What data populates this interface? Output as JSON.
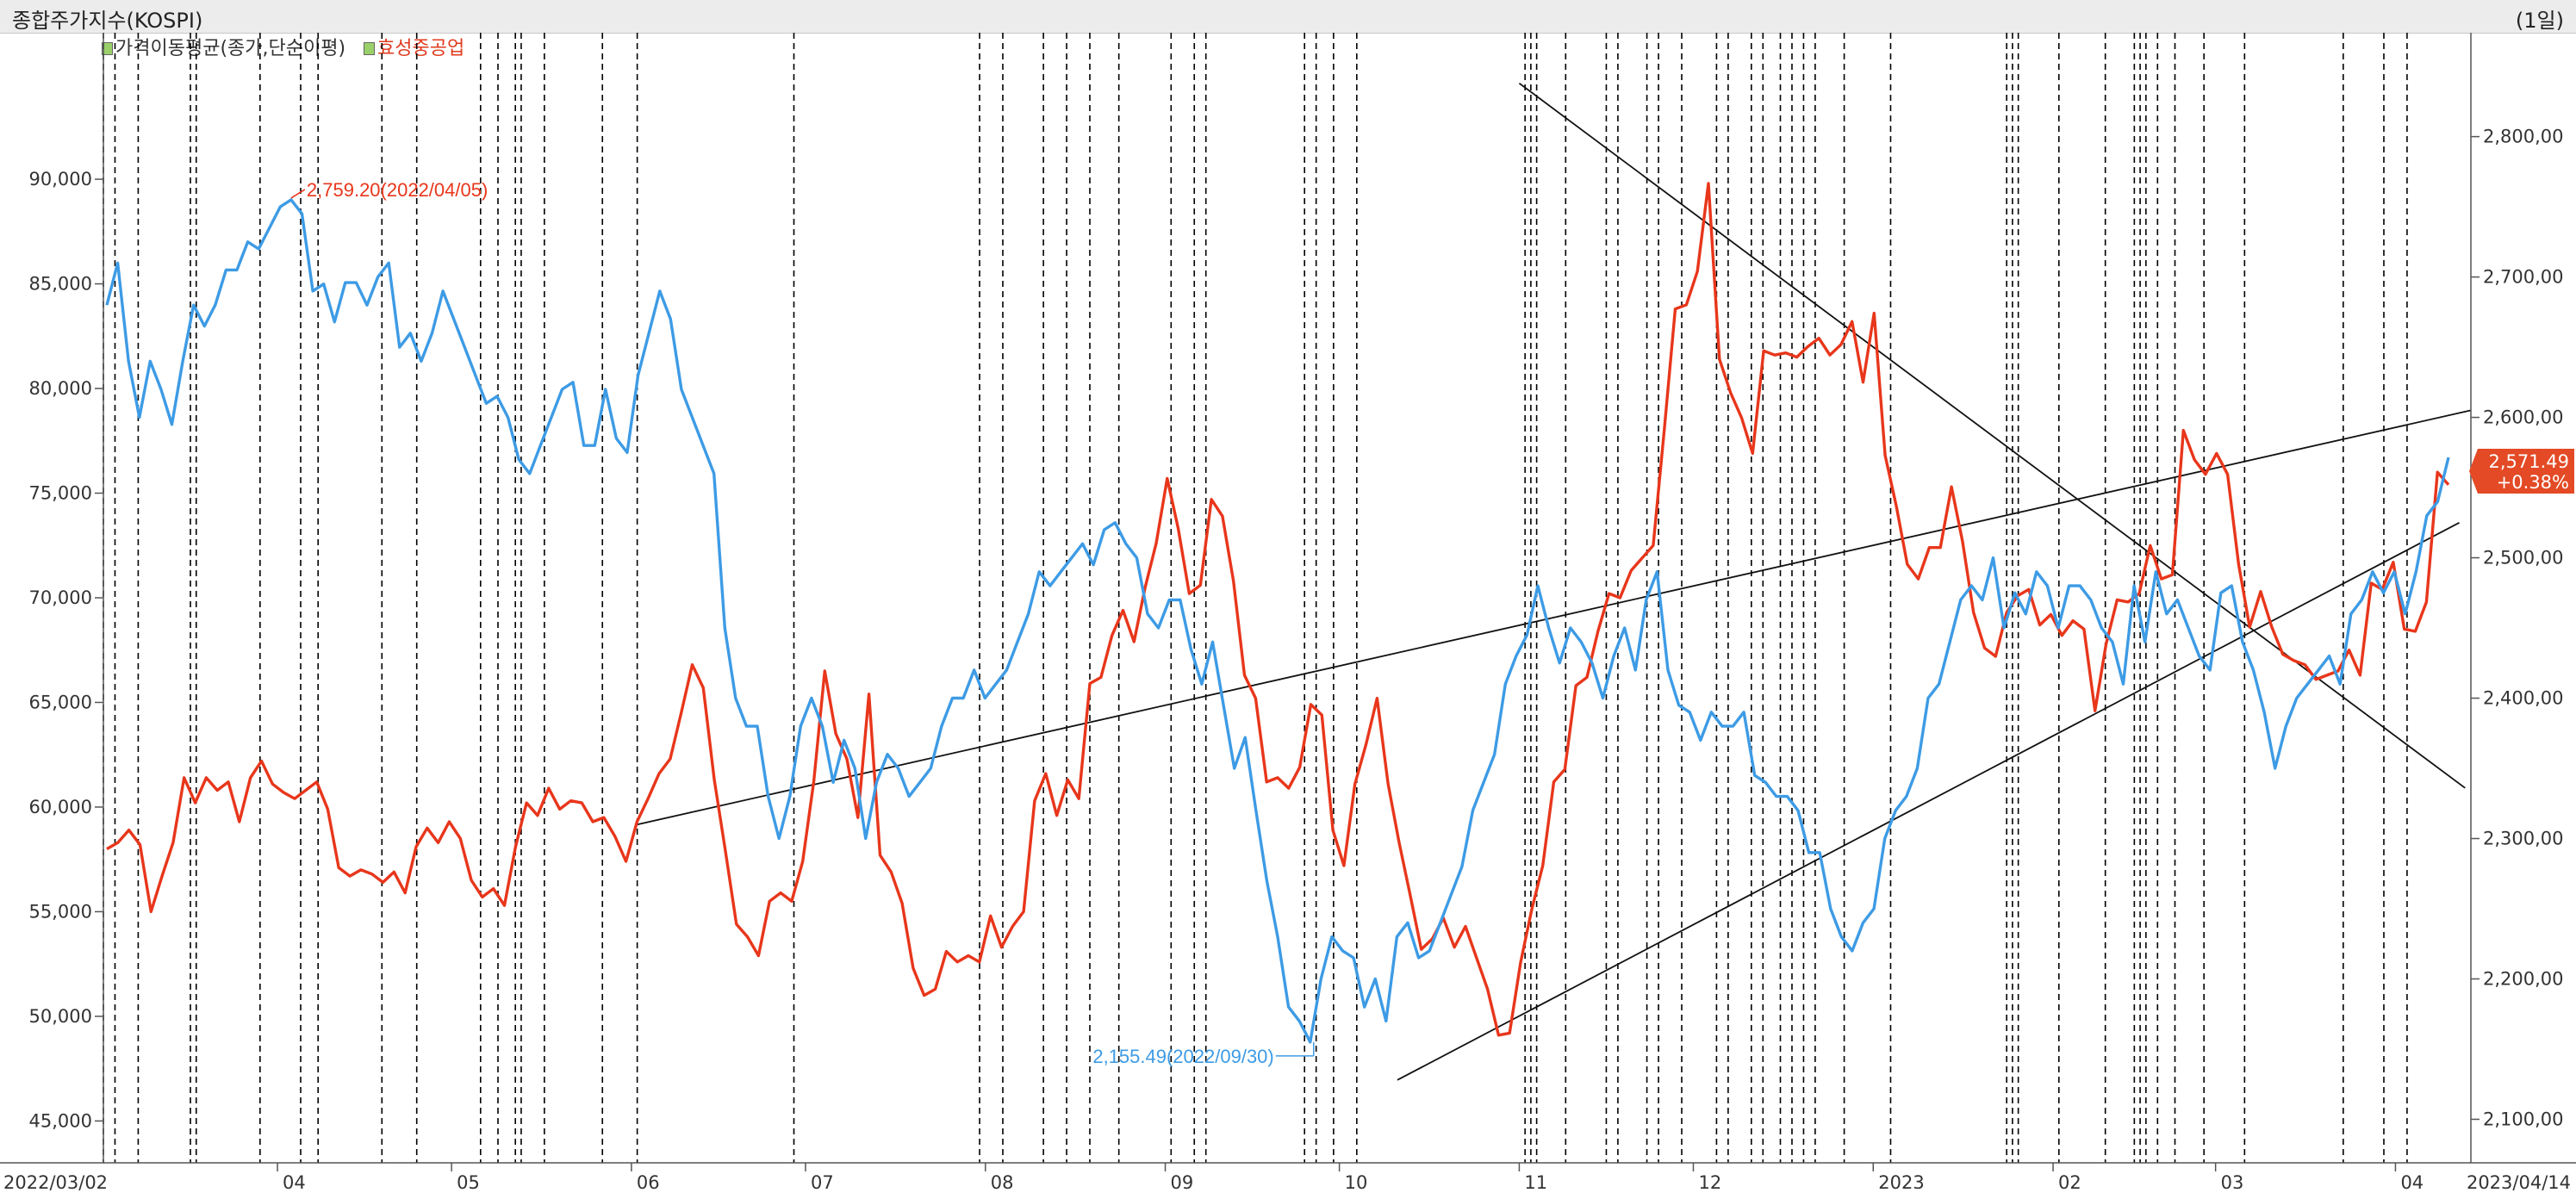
{
  "header": {
    "title": "종합주가지수(KOSPI)",
    "period": "(1일)"
  },
  "legend": {
    "items": [
      {
        "label": "가격이동평균(종가,단순이평)",
        "color": "#333333"
      },
      {
        "label": "효성중공업",
        "color": "#e03b1e"
      }
    ]
  },
  "colors": {
    "hyosung": "#e8361b",
    "kospi": "#3d9be5",
    "trendline": "#111111",
    "vline": "#000000",
    "vline_light": "#b5b5b5",
    "lastbox": "#e34a25"
  },
  "chart_data": {
    "type": "line",
    "x": {
      "start": "2022-03-02",
      "end": "2023-04-14",
      "labels": [
        "2022/03/02",
        "04",
        "05",
        "06",
        "07",
        "08",
        "09",
        "10",
        "11",
        "12",
        "2023",
        "02",
        "03",
        "04",
        "2023/04/14"
      ]
    },
    "y_left": {
      "label": "효성중공업",
      "ylim": [
        43000,
        97000
      ],
      "ticks": [
        "45,000",
        "50,000",
        "55,000",
        "60,000",
        "65,000",
        "70,000",
        "75,000",
        "80,000",
        "85,000",
        "90,000"
      ]
    },
    "y_right": {
      "label": "KOSPI",
      "ylim": [
        2069,
        2874
      ],
      "ticks": [
        "2,100,00",
        "2,200,00",
        "2,300,00",
        "2,400,00",
        "2,500,00",
        "2,600,00",
        "2,700,00",
        "2,800,00"
      ]
    },
    "series": [
      {
        "name": "효성중공업",
        "axis": "left",
        "values": [
          58000,
          58300,
          58900,
          58200,
          55000,
          56700,
          58300,
          61400,
          60200,
          61400,
          60800,
          61200,
          59300,
          61400,
          62200,
          61100,
          60700,
          60400,
          60800,
          61200,
          59900,
          57100,
          56700,
          57000,
          56800,
          56400,
          56900,
          55900,
          58100,
          59000,
          58300,
          59300,
          58500,
          56500,
          55700,
          56100,
          55300,
          58100,
          60200,
          59600,
          60900,
          59900,
          60300,
          60200,
          59300,
          59500,
          58600,
          57400,
          59300,
          60400,
          61600,
          62300,
          64500,
          66800,
          65700,
          61300,
          57900,
          54400,
          53800,
          52900,
          55500,
          55900,
          55500,
          57400,
          61200,
          66500,
          63500,
          62300,
          59500,
          65400,
          57700,
          56900,
          55400,
          52300,
          51000,
          51300,
          53100,
          52600,
          52900,
          52600,
          54800,
          53300,
          54300,
          55000,
          60300,
          61600,
          59600,
          61300,
          60400,
          65900,
          66200,
          68200,
          69400,
          67900,
          70500,
          72600,
          75700,
          73300,
          70200,
          70600,
          74700,
          73900,
          70800,
          66300,
          65200,
          61200,
          61400,
          60900,
          61900,
          64900,
          64400,
          58900,
          57200,
          61100,
          63000,
          65200,
          61100,
          58300,
          55800,
          53200,
          53700,
          54700,
          53300,
          54300,
          52800,
          51300,
          49100,
          49200,
          52600,
          55100,
          57200,
          61200,
          61800,
          65800,
          66200,
          68400,
          70200,
          70000,
          71300,
          71900,
          72500,
          78000,
          83800,
          84000,
          85600,
          89800,
          81400,
          79800,
          78600,
          76900,
          81800,
          81600,
          81700,
          81500,
          82000,
          82400,
          81600,
          82100,
          83200,
          80300,
          83600,
          76800,
          74400,
          71600,
          70900,
          72400,
          72400,
          75300,
          72700,
          69300,
          67600,
          67200,
          69300,
          70100,
          70400,
          68700,
          69200,
          68200,
          68900,
          68500,
          64600,
          67800,
          69900,
          69800,
          70200,
          72500,
          70900,
          71100,
          78000,
          76600,
          75900,
          76900,
          75900,
          71600,
          68600,
          70300,
          68600,
          67300,
          67000,
          66800,
          66100,
          66300,
          66500,
          67500,
          66300,
          70700,
          70400,
          71700,
          68500,
          68400,
          69800,
          76000,
          75400
        ]
      },
      {
        "name": "KOSPI",
        "axis": "right",
        "values": [
          2680,
          2710,
          2640,
          2600,
          2640,
          2620,
          2595,
          2640,
          2680,
          2665,
          2680,
          2705,
          2705,
          2725,
          2720,
          2735,
          2750,
          2755,
          2745,
          2690,
          2695,
          2668,
          2696,
          2696,
          2680,
          2700,
          2710,
          2650,
          2660,
          2640,
          2660,
          2690,
          2670,
          2650,
          2630,
          2610,
          2615,
          2600,
          2570,
          2560,
          2580,
          2600,
          2620,
          2625,
          2580,
          2580,
          2620,
          2585,
          2575,
          2630,
          2660,
          2690,
          2670,
          2620,
          2600,
          2580,
          2560,
          2450,
          2400,
          2380,
          2380,
          2330,
          2300,
          2330,
          2380,
          2400,
          2380,
          2340,
          2370,
          2350,
          2300,
          2340,
          2360,
          2350,
          2330,
          2340,
          2350,
          2380,
          2400,
          2400,
          2420,
          2400,
          2410,
          2420,
          2440,
          2460,
          2490,
          2480,
          2490,
          2500,
          2510,
          2495,
          2520,
          2525,
          2510,
          2500,
          2460,
          2450,
          2470,
          2470,
          2435,
          2410,
          2440,
          2395,
          2350,
          2372,
          2320,
          2270,
          2230,
          2180,
          2170,
          2155,
          2200,
          2230,
          2220,
          2215,
          2180,
          2200,
          2170,
          2230,
          2240,
          2215,
          2220,
          2240,
          2260,
          2280,
          2320,
          2340,
          2360,
          2410,
          2430,
          2445,
          2480,
          2450,
          2425,
          2450,
          2440,
          2425,
          2400,
          2430,
          2450,
          2420,
          2470,
          2490,
          2420,
          2395,
          2390,
          2370,
          2390,
          2380,
          2380,
          2390,
          2345,
          2340,
          2330,
          2330,
          2320,
          2290,
          2290,
          2250,
          2230,
          2220,
          2240,
          2250,
          2300,
          2320,
          2330,
          2350,
          2400,
          2410,
          2440,
          2470,
          2480,
          2470,
          2500,
          2450,
          2475,
          2460,
          2490,
          2480,
          2450,
          2480,
          2480,
          2470,
          2450,
          2440,
          2410,
          2480,
          2440,
          2490,
          2460,
          2470,
          2450,
          2430,
          2420,
          2475,
          2480,
          2440,
          2420,
          2390,
          2350,
          2380,
          2400,
          2410,
          2420,
          2430,
          2410,
          2460,
          2470,
          2490,
          2475,
          2490,
          2460,
          2490,
          2530,
          2540,
          2571.49
        ]
      }
    ],
    "annotations": [
      {
        "text": "2,759.20(2022/04/05)",
        "series": "효성중공업"
      },
      {
        "text": "2,155.49(2022/09/30)",
        "series": "KOSPI"
      }
    ],
    "last_value": {
      "value": "2,571.49",
      "change": "+0.38%"
    },
    "trendlines": [
      {
        "from": {
          "x": "2022-06-02",
          "y_right": 2310
        },
        "to": {
          "x": "2023-04-14",
          "y_right": 2605
        }
      },
      {
        "from": {
          "x": "2022-10-11",
          "y_right": 2128
        },
        "to": {
          "x": "2023-04-12",
          "y_right": 2525
        }
      },
      {
        "from": {
          "x": "2022-11-01",
          "y_right": 2838
        },
        "to": {
          "x": "2023-04-13",
          "y_right": 2336
        }
      }
    ],
    "event_lines": [
      "2022-03-02",
      "2022-03-04",
      "2022-03-08",
      "2022-03-17",
      "2022-03-18",
      "2022-03-29",
      "2022-04-05",
      "2022-04-08",
      "2022-04-19",
      "2022-04-25",
      "2022-05-06",
      "2022-05-09",
      "2022-05-12",
      "2022-05-13",
      "2022-05-17",
      "2022-05-27",
      "2022-06-02",
      "2022-06-29",
      "2022-07-31",
      "2022-08-04",
      "2022-08-11",
      "2022-08-15",
      "2022-08-19",
      "2022-08-24",
      "2022-09-02",
      "2022-09-06",
      "2022-09-08",
      "2022-09-25",
      "2022-09-27",
      "2022-09-30",
      "2022-10-04",
      "2022-11-02",
      "2022-11-03",
      "2022-11-04",
      "2022-11-09",
      "2022-11-16",
      "2022-11-18",
      "2022-11-23",
      "2022-11-25",
      "2022-11-29",
      "2022-12-05",
      "2022-12-07",
      "2022-12-11",
      "2022-12-13",
      "2022-12-16",
      "2022-12-18",
      "2022-12-20",
      "2022-12-22",
      "2022-12-27",
      "2023-01-04",
      "2023-01-24",
      "2023-01-25",
      "2023-01-26",
      "2023-02-02",
      "2023-02-10",
      "2023-02-15",
      "2023-02-16",
      "2023-02-17",
      "2023-02-19",
      "2023-02-22",
      "2023-02-27",
      "2023-03-06",
      "2023-03-23",
      "2023-03-30",
      "2023-04-03"
    ]
  }
}
